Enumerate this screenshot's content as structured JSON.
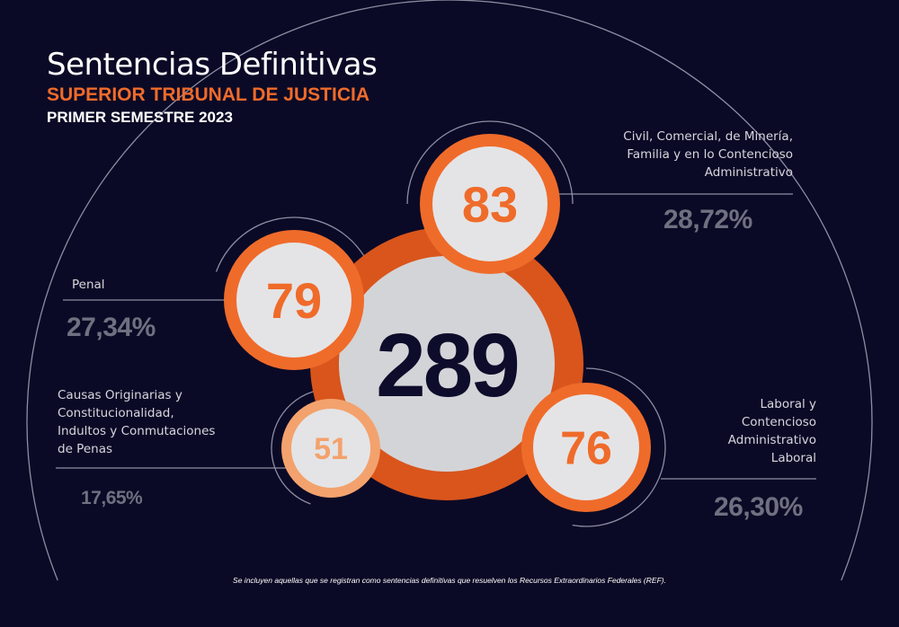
{
  "header": {
    "title": "Sentencias Definitivas",
    "subtitle": "SUPERIOR TRIBUNAL DE JUSTICIA",
    "period": "PRIMER SEMESTRE 2023"
  },
  "footnote": "Se incluyen aquellas que se registran como sentencias definitivas que resuelven los Recursos Extraordinarios Federales (REF).",
  "colors": {
    "background": "#0b0a26",
    "orange": "#ef6b2a",
    "orange_light": "#f3a26d",
    "bubble_fill": "#e4e4e6",
    "total_text": "#0d0c2b",
    "muted": "#6f7080"
  },
  "chart_data": {
    "type": "bubble",
    "total": {
      "value": 289
    },
    "categories": [
      {
        "name": "Civil, Comercial, de Minería,\nFamilia y en lo Contencioso\nAdministrativo",
        "value": 83,
        "percent": "28,72%"
      },
      {
        "name": "Penal",
        "value": 79,
        "percent": "27,34%"
      },
      {
        "name": "Causas Originarias y\nConstitucionalidad,\nIndultos y Conmutaciones\nde Penas",
        "value": 51,
        "percent": "17,65%"
      },
      {
        "name": "Laboral y\nContencioso\nAdministrativo\nLaboral",
        "value": 76,
        "percent": "26,30%"
      }
    ]
  }
}
